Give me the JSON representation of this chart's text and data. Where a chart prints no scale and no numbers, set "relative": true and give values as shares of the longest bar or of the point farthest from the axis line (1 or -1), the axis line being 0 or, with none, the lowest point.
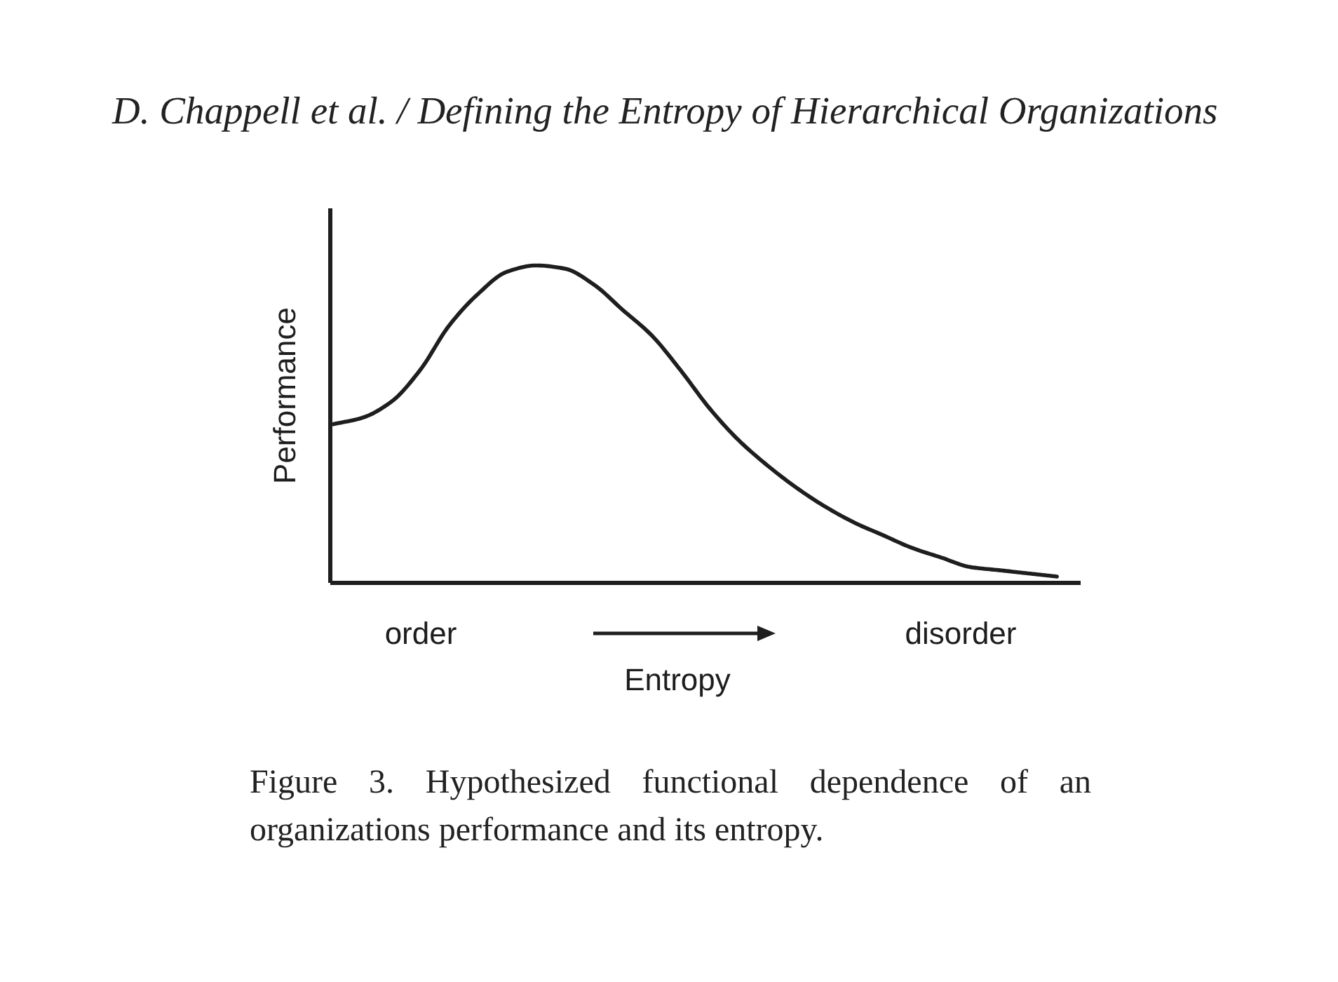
{
  "chart_data": {
    "type": "line",
    "relative": true,
    "title": "D. Chappell et al. / Defining the Entropy of Hierarchical Organizations",
    "xlabel": "Entropy",
    "ylabel": "Performance",
    "annotations": [
      "order",
      "disorder",
      "Figure 3. Hypothesized functional dependence of an organizations performance and its entropy."
    ],
    "categories": [
      null,
      null,
      null,
      null,
      null,
      null,
      null,
      null,
      null,
      null,
      null,
      null,
      null,
      null,
      null,
      null,
      null,
      null,
      null,
      null,
      null,
      null,
      null,
      null,
      null,
      null
    ],
    "series": [
      {
        "color": "#1e1e1e",
        "values": [
          0.5,
          0.52,
          0.57,
          0.67,
          0.81,
          0.91,
          0.98,
          1,
          0.99,
          0.94,
          0.86,
          0.78,
          0.67,
          0.55,
          0.45,
          0.37,
          0.3,
          0.24,
          0.19,
          0.15,
          0.11,
          0.08,
          0.05,
          0.04,
          0.03,
          0.02
        ]
      }
    ]
  }
}
